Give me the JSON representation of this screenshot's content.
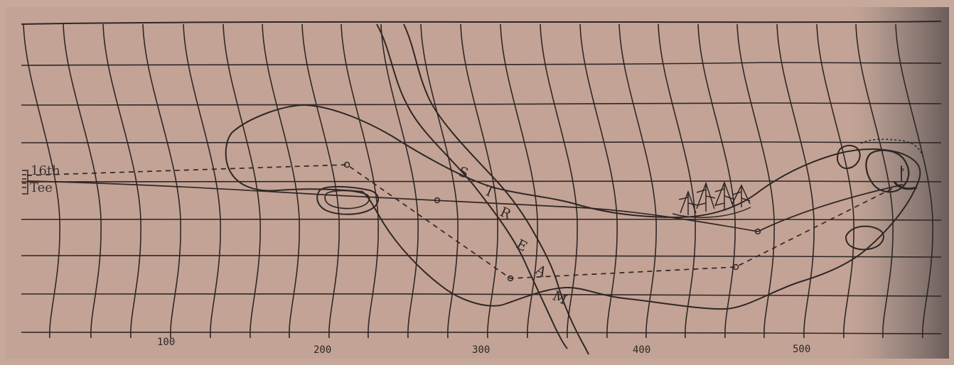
{
  "tee_label": {
    "line1": "16th",
    "line2": "Tee"
  },
  "stream_label": {
    "letters": [
      "S",
      "T",
      "R",
      "E",
      "A",
      "M"
    ]
  },
  "scale": {
    "labels": [
      "100",
      "200",
      "300",
      "400",
      "500"
    ]
  },
  "markers": {
    "flag": "P"
  },
  "colors": {
    "paper": "#c7a99b",
    "ink": "#2f2725",
    "shadow": "#6b5e5a"
  }
}
